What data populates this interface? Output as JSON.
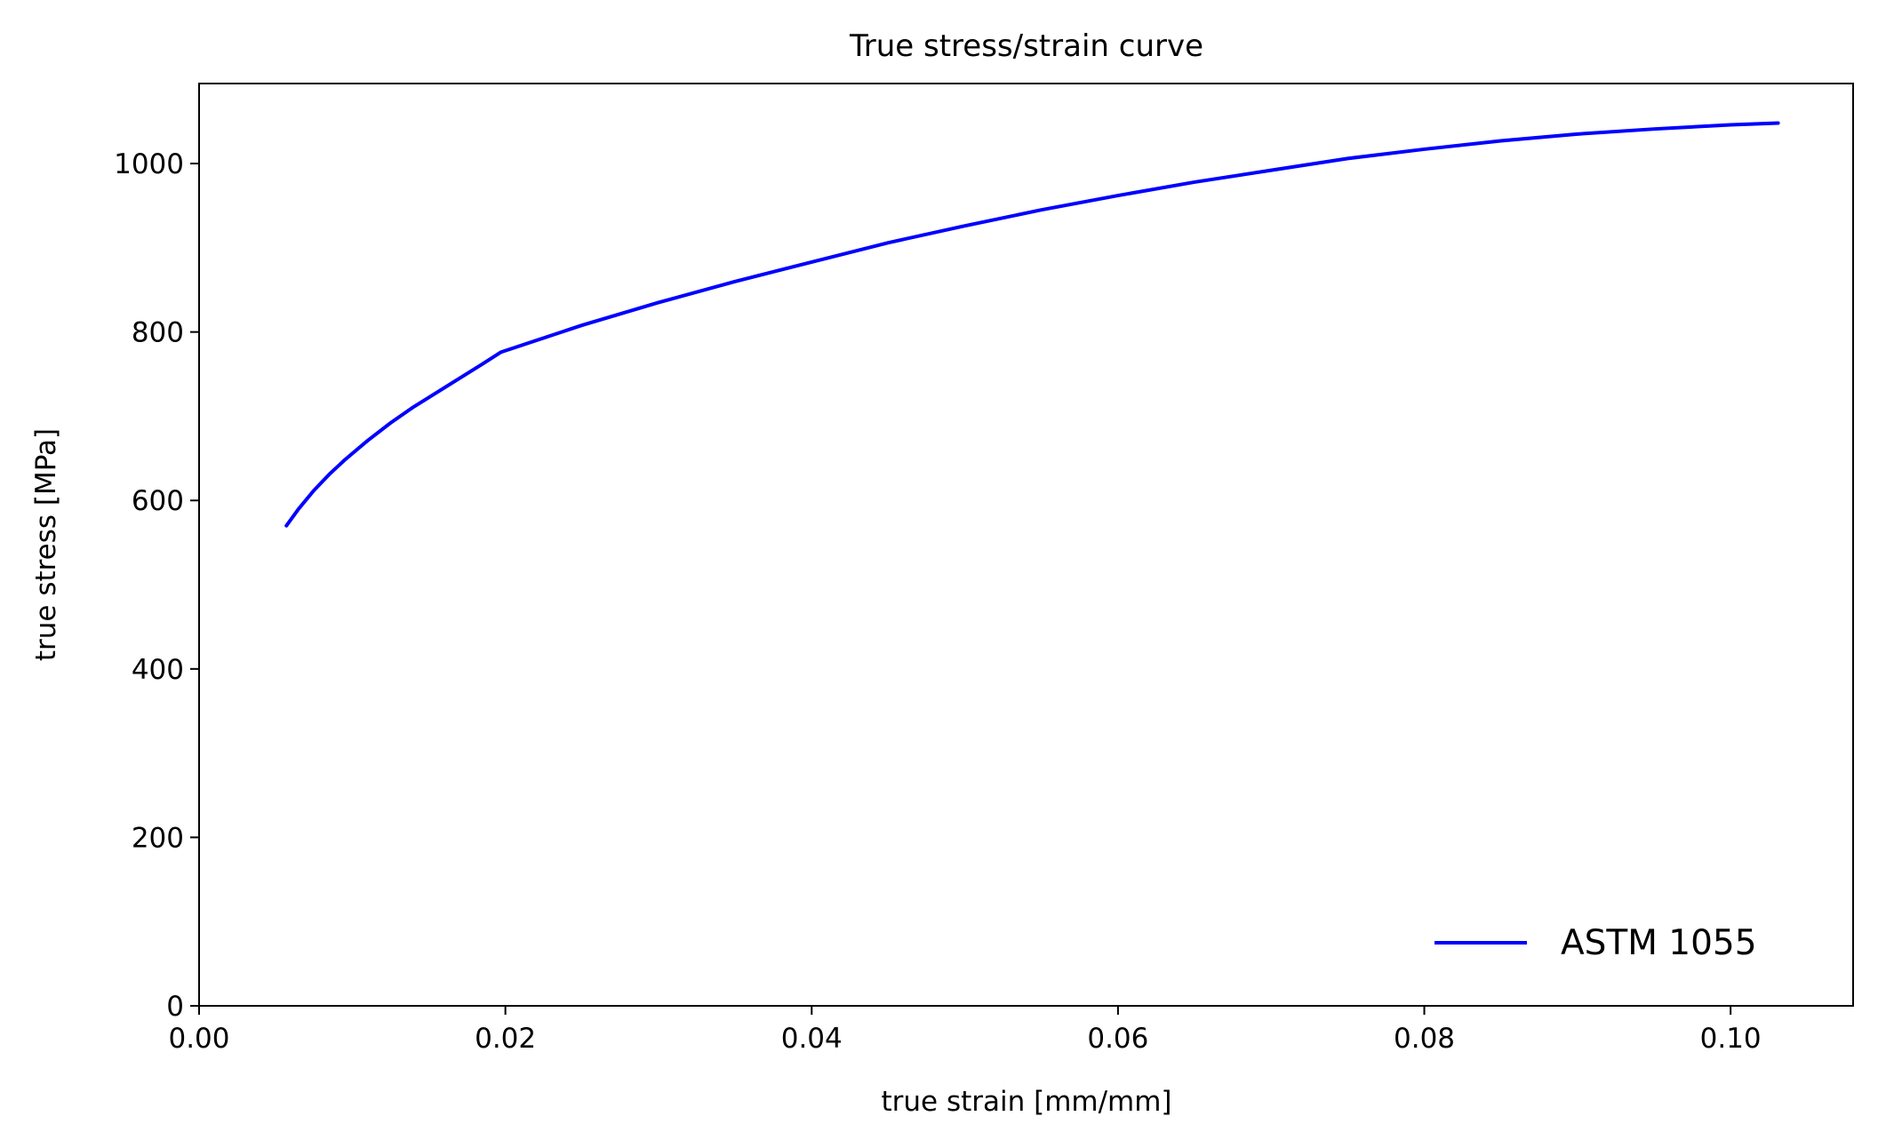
{
  "chart_data": {
    "type": "line",
    "title": "True stress/strain curve",
    "xlabel": "true strain [mm/mm]",
    "ylabel": "true stress [MPa]",
    "xlim": [
      0.0,
      0.108
    ],
    "ylim": [
      0,
      1095
    ],
    "xticks": [
      0.0,
      0.02,
      0.04,
      0.06,
      0.08,
      0.1
    ],
    "xtick_labels": [
      "0.00",
      "0.02",
      "0.04",
      "0.06",
      "0.08",
      "0.10"
    ],
    "yticks": [
      0,
      200,
      400,
      600,
      800,
      1000
    ],
    "ytick_labels": [
      "0",
      "200",
      "400",
      "600",
      "800",
      "1000"
    ],
    "grid": false,
    "legend": {
      "position": "lower-right",
      "frame": false
    },
    "series": [
      {
        "name": "ASTM 1055",
        "color": "#0000ff",
        "x": [
          0.0057,
          0.0065,
          0.0075,
          0.0085,
          0.0095,
          0.011,
          0.0125,
          0.014,
          0.0155,
          0.017,
          0.0185,
          0.0197,
          0.025,
          0.03,
          0.035,
          0.04,
          0.045,
          0.05,
          0.055,
          0.06,
          0.065,
          0.07,
          0.075,
          0.08,
          0.085,
          0.09,
          0.095,
          0.1,
          0.1031
        ],
        "y": [
          570,
          590,
          612,
          631,
          648,
          671,
          692,
          711,
          728,
          745,
          762,
          776,
          808,
          835,
          860,
          883,
          906,
          926,
          945,
          962,
          978,
          992,
          1006,
          1017,
          1027,
          1035,
          1041,
          1046,
          1048
        ]
      }
    ]
  }
}
